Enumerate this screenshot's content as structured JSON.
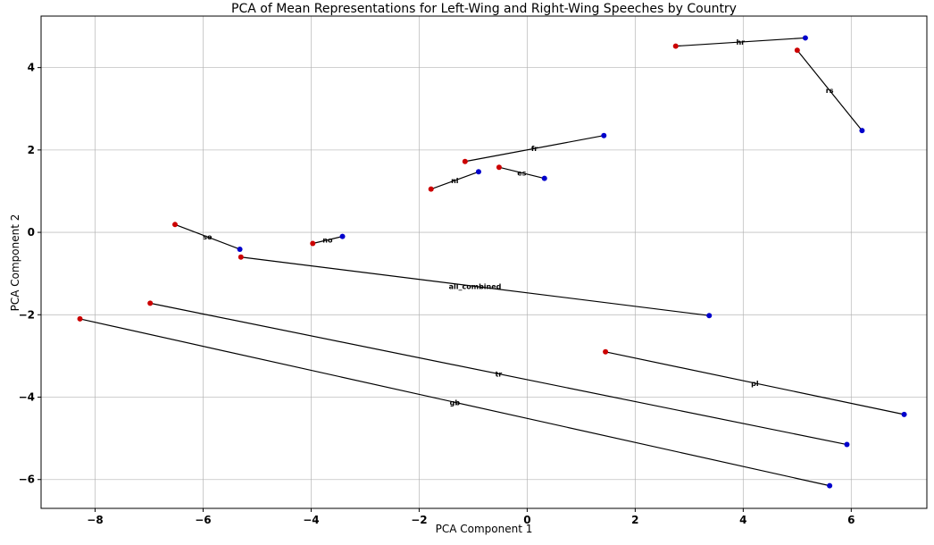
{
  "chart_data": {
    "type": "scatter",
    "title": "PCA of Mean Representations for Left-Wing and Right-Wing Speeches by Country",
    "xlabel": "PCA Component 1",
    "ylabel": "PCA Component 2",
    "xlim": [
      -9.0,
      7.4
    ],
    "ylim": [
      -6.7,
      5.25
    ],
    "xticks": [
      -8,
      -6,
      -4,
      -2,
      0,
      2,
      4,
      6
    ],
    "yticks": [
      -6,
      -4,
      -2,
      0,
      2,
      4
    ],
    "grid": true,
    "colors": {
      "left": "#cc0000",
      "right": "#0000cc",
      "line": "#000000"
    },
    "pairs": [
      {
        "label": "hr",
        "left": [
          2.75,
          4.52
        ],
        "right": [
          5.15,
          4.72
        ]
      },
      {
        "label": "rs",
        "left": [
          5.0,
          4.42
        ],
        "right": [
          6.2,
          2.47
        ]
      },
      {
        "label": "fr",
        "left": [
          -1.15,
          1.72
        ],
        "right": [
          1.42,
          2.35
        ]
      },
      {
        "label": "nl",
        "left": [
          -1.78,
          1.05
        ],
        "right": [
          -0.9,
          1.47
        ]
      },
      {
        "label": "es",
        "left": [
          -0.52,
          1.58
        ],
        "right": [
          0.32,
          1.31
        ]
      },
      {
        "label": "se",
        "left": [
          -6.52,
          0.19
        ],
        "right": [
          -5.32,
          -0.41
        ]
      },
      {
        "label": "no",
        "left": [
          -3.97,
          -0.27
        ],
        "right": [
          -3.42,
          -0.1
        ]
      },
      {
        "label": "all_combined",
        "left": [
          -5.3,
          -0.6
        ],
        "right": [
          3.37,
          -2.02
        ]
      },
      {
        "label": "tr",
        "left": [
          -6.98,
          -1.72
        ],
        "right": [
          5.92,
          -5.15
        ]
      },
      {
        "label": "gb",
        "left": [
          -8.28,
          -2.1
        ],
        "right": [
          5.6,
          -6.15
        ]
      },
      {
        "label": "pl",
        "left": [
          1.45,
          -2.9
        ],
        "right": [
          6.98,
          -4.42
        ]
      }
    ]
  }
}
